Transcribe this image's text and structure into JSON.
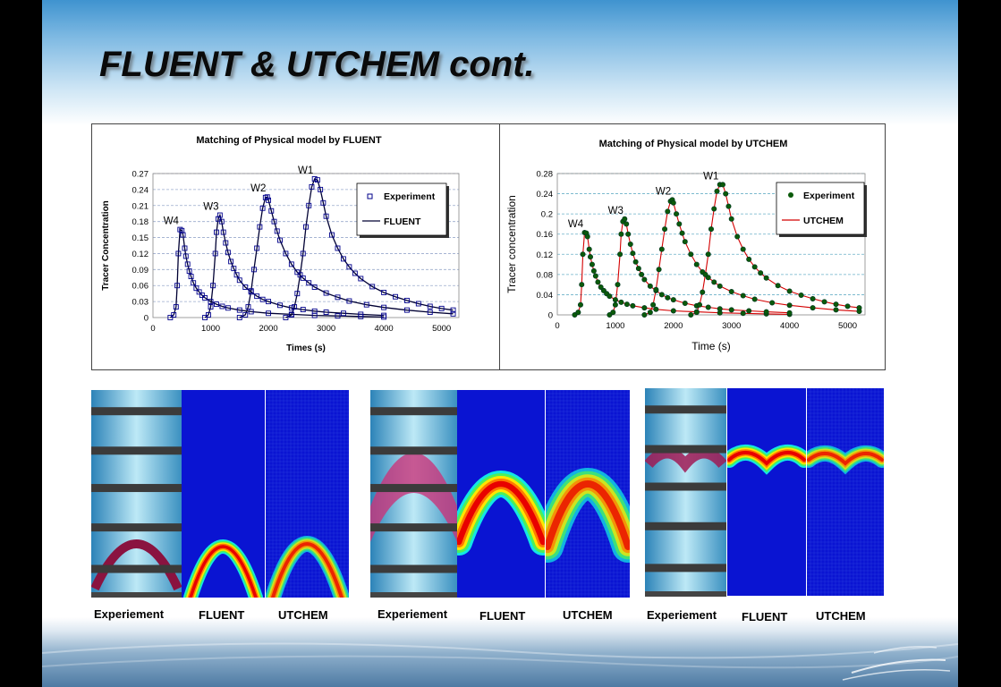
{
  "slide": {
    "title": "FLUENT & UTCHEM cont."
  },
  "chart_data": [
    {
      "type": "scatter",
      "title": "Matching of Physical model by FLUENT",
      "xlabel": "Times (s)",
      "ylabel": "Tracer Concentration",
      "xlim": [
        0,
        5300
      ],
      "ylim": [
        0,
        0.27
      ],
      "xticks": [
        "0",
        "1000",
        "2000",
        "3000",
        "4000",
        "5000"
      ],
      "yticks": [
        "0",
        "0.03",
        "0.06",
        "0.09",
        "0.12",
        "0.15",
        "0.18",
        "0.21",
        "0.24",
        "0.27"
      ],
      "legend": {
        "position": "top-right",
        "experiment": "Experiment",
        "model": "FLUENT"
      },
      "grid": true,
      "peak_labels": [
        "W4",
        "W3",
        "W2",
        "W1"
      ],
      "series": [
        {
          "name": "W4",
          "x": [
            300,
            360,
            400,
            420,
            440,
            470,
            500,
            520,
            550,
            570,
            600,
            630,
            660,
            700,
            750,
            800,
            850,
            900,
            1000,
            1100,
            1200,
            1300,
            1500,
            1700,
            2000,
            2400,
            2800,
            3200,
            3600,
            4000
          ],
          "y": [
            0,
            0.005,
            0.02,
            0.06,
            0.12,
            0.165,
            0.163,
            0.155,
            0.13,
            0.115,
            0.1,
            0.087,
            0.077,
            0.065,
            0.055,
            0.048,
            0.042,
            0.037,
            0.03,
            0.025,
            0.021,
            0.018,
            0.014,
            0.011,
            0.008,
            0.006,
            0.004,
            0.003,
            0.002,
            0.001
          ]
        },
        {
          "name": "W3",
          "x": [
            900,
            960,
            1000,
            1040,
            1080,
            1100,
            1130,
            1160,
            1190,
            1220,
            1260,
            1300,
            1350,
            1400,
            1450,
            1500,
            1600,
            1700,
            1800,
            1900,
            2000,
            2200,
            2400,
            2600,
            2800,
            3000,
            3300,
            3600,
            4000
          ],
          "y": [
            0,
            0.005,
            0.02,
            0.06,
            0.12,
            0.16,
            0.185,
            0.192,
            0.18,
            0.16,
            0.14,
            0.122,
            0.105,
            0.092,
            0.08,
            0.07,
            0.057,
            0.048,
            0.04,
            0.034,
            0.03,
            0.023,
            0.018,
            0.015,
            0.012,
            0.01,
            0.008,
            0.006,
            0.004
          ]
        },
        {
          "name": "W2",
          "x": [
            1500,
            1600,
            1650,
            1700,
            1750,
            1800,
            1850,
            1900,
            1950,
            1980,
            2000,
            2050,
            2100,
            2150,
            2200,
            2300,
            2400,
            2500,
            2600,
            2700,
            2800,
            3000,
            3200,
            3400,
            3700,
            4000,
            4400,
            4800,
            5200
          ],
          "y": [
            0,
            0.005,
            0.02,
            0.05,
            0.09,
            0.13,
            0.17,
            0.205,
            0.225,
            0.226,
            0.22,
            0.2,
            0.18,
            0.162,
            0.145,
            0.12,
            0.1,
            0.085,
            0.074,
            0.065,
            0.057,
            0.046,
            0.038,
            0.031,
            0.024,
            0.019,
            0.014,
            0.01,
            0.007
          ]
        },
        {
          "name": "W1",
          "x": [
            2300,
            2400,
            2450,
            2500,
            2550,
            2600,
            2650,
            2700,
            2750,
            2800,
            2850,
            2900,
            2950,
            3000,
            3100,
            3200,
            3300,
            3400,
            3500,
            3600,
            3800,
            4000,
            4200,
            4400,
            4600,
            4800,
            5000,
            5200
          ],
          "y": [
            0,
            0.005,
            0.02,
            0.045,
            0.08,
            0.12,
            0.17,
            0.21,
            0.245,
            0.26,
            0.258,
            0.24,
            0.215,
            0.19,
            0.155,
            0.13,
            0.11,
            0.095,
            0.083,
            0.073,
            0.058,
            0.047,
            0.039,
            0.032,
            0.026,
            0.021,
            0.017,
            0.014
          ]
        }
      ]
    },
    {
      "type": "scatter",
      "title": "Matching of Physical model by UTCHEM",
      "xlabel": "Time (s)",
      "ylabel": "Tracer concentration",
      "xlim": [
        0,
        5300
      ],
      "ylim": [
        0,
        0.28
      ],
      "xticks": [
        "0",
        "1000",
        "2000",
        "3000",
        "4000",
        "5000"
      ],
      "yticks": [
        "0",
        "0.04",
        "0.08",
        "0.12",
        "0.16",
        "0.2",
        "0.24",
        "0.28"
      ],
      "legend": {
        "position": "top-right",
        "experiment": "Experiment",
        "model": "UTCHEM"
      },
      "grid": true,
      "peak_labels": [
        "W4",
        "W3",
        "W2",
        "W1"
      ],
      "series": [
        {
          "name": "W4",
          "x": [
            300,
            360,
            400,
            420,
            440,
            470,
            500,
            520,
            550,
            570,
            600,
            630,
            660,
            700,
            750,
            800,
            850,
            900,
            1000,
            1100,
            1200,
            1300,
            1500,
            1700,
            2000,
            2400,
            2800,
            3200,
            3600,
            4000
          ],
          "y": [
            0,
            0.005,
            0.02,
            0.06,
            0.12,
            0.163,
            0.162,
            0.155,
            0.13,
            0.115,
            0.1,
            0.087,
            0.077,
            0.065,
            0.055,
            0.048,
            0.042,
            0.037,
            0.03,
            0.025,
            0.021,
            0.018,
            0.014,
            0.011,
            0.008,
            0.006,
            0.004,
            0.003,
            0.002,
            0.001
          ]
        },
        {
          "name": "W3",
          "x": [
            900,
            960,
            1000,
            1040,
            1080,
            1100,
            1130,
            1160,
            1190,
            1220,
            1260,
            1300,
            1350,
            1400,
            1450,
            1500,
            1600,
            1700,
            1800,
            1900,
            2000,
            2200,
            2400,
            2600,
            2800,
            3000,
            3300,
            3600,
            4000
          ],
          "y": [
            0,
            0.005,
            0.02,
            0.06,
            0.12,
            0.16,
            0.185,
            0.19,
            0.18,
            0.16,
            0.14,
            0.122,
            0.105,
            0.092,
            0.08,
            0.07,
            0.057,
            0.048,
            0.04,
            0.034,
            0.03,
            0.023,
            0.018,
            0.015,
            0.012,
            0.01,
            0.008,
            0.006,
            0.004
          ]
        },
        {
          "name": "W2",
          "x": [
            1500,
            1600,
            1650,
            1700,
            1750,
            1800,
            1850,
            1900,
            1950,
            1980,
            2000,
            2050,
            2100,
            2150,
            2200,
            2300,
            2400,
            2500,
            2600,
            2700,
            2800,
            3000,
            3200,
            3400,
            3700,
            4000,
            4400,
            4800,
            5200
          ],
          "y": [
            0,
            0.005,
            0.02,
            0.05,
            0.09,
            0.13,
            0.17,
            0.205,
            0.225,
            0.228,
            0.222,
            0.2,
            0.18,
            0.162,
            0.145,
            0.12,
            0.1,
            0.085,
            0.074,
            0.065,
            0.057,
            0.046,
            0.038,
            0.031,
            0.024,
            0.019,
            0.014,
            0.01,
            0.007
          ]
        },
        {
          "name": "W1",
          "x": [
            2300,
            2400,
            2450,
            2500,
            2550,
            2600,
            2650,
            2700,
            2750,
            2800,
            2850,
            2900,
            2950,
            3000,
            3100,
            3200,
            3300,
            3400,
            3500,
            3600,
            3800,
            4000,
            4200,
            4400,
            4600,
            4800,
            5000,
            5200
          ],
          "y": [
            0,
            0.005,
            0.02,
            0.045,
            0.08,
            0.12,
            0.17,
            0.21,
            0.245,
            0.258,
            0.258,
            0.24,
            0.215,
            0.19,
            0.155,
            0.13,
            0.11,
            0.095,
            0.083,
            0.073,
            0.058,
            0.047,
            0.039,
            0.032,
            0.026,
            0.021,
            0.017,
            0.014
          ]
        }
      ]
    }
  ],
  "colors": {
    "fluent_marker": "#00008b",
    "fluent_line": "#000033",
    "utchem_marker": "#0a5a0a",
    "utchem_line": "#d40000"
  },
  "comparison_panels": [
    {
      "captions": [
        "Experiement",
        "FLUENT",
        "UTCHEM"
      ]
    },
    {
      "captions": [
        "Experiement",
        "FLUENT",
        "UTCHEM"
      ]
    },
    {
      "captions": [
        "Experiement",
        "FLUENT",
        "UTCHEM"
      ]
    }
  ]
}
